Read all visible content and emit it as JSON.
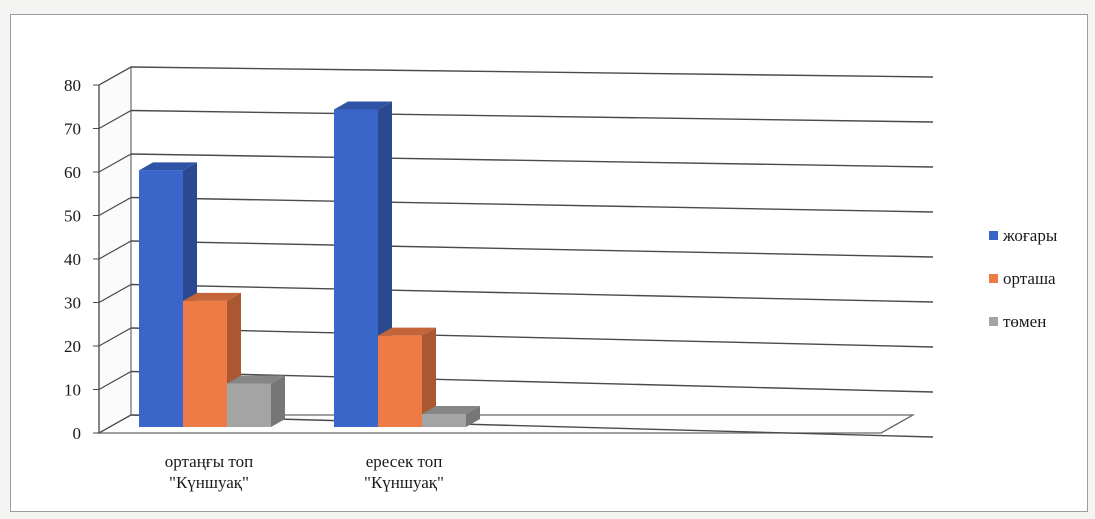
{
  "chart_data": {
    "type": "bar",
    "categories": [
      [
        "ортаңғы топ",
        "\"Күншуақ\""
      ],
      [
        "ересек топ",
        "\"Күншуақ\""
      ]
    ],
    "series": [
      {
        "name": "жоғары",
        "color": "#3a66c9",
        "values": [
          59,
          73
        ]
      },
      {
        "name": "орташа",
        "color": "#ee7a45",
        "values": [
          29,
          21
        ]
      },
      {
        "name": "төмен",
        "color": "#a4a4a4",
        "values": [
          10,
          3
        ]
      }
    ],
    "yticks": [
      "0",
      "10",
      "20",
      "30",
      "40",
      "50",
      "60",
      "70",
      "80"
    ],
    "ylim": [
      0,
      80
    ],
    "grid": true,
    "style": "3d-clustered-column",
    "legend": "right"
  }
}
